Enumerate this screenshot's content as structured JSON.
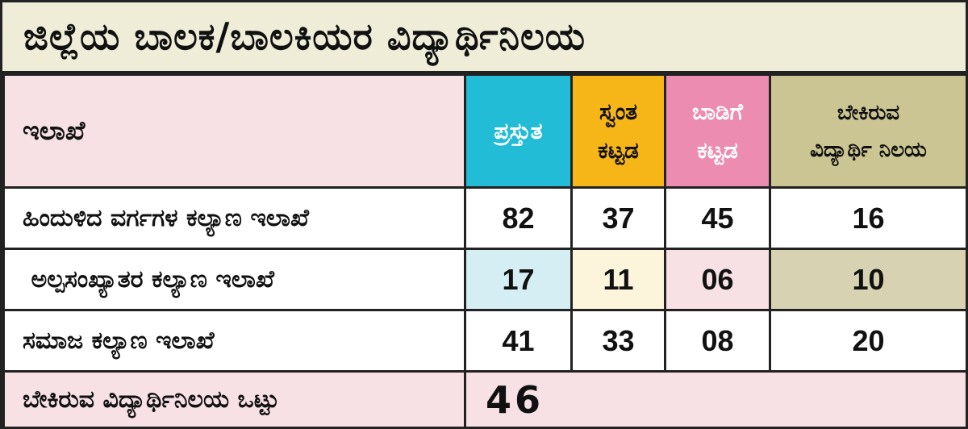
{
  "title": "ಜಿಲ್ಲೆಯ ಬಾಲಕ/ಬಾಲಕಿಯರ ವಿದ್ಯಾರ್ಥಿನಿಲಯ",
  "headers": {
    "department": "ಇಲಾಖೆ",
    "present": "ಪ್ರಸ್ತುತ",
    "own_building_1": "ಸ್ವಂತ",
    "own_building_2": "ಕಟ್ಟಡ",
    "rented_building_1": "ಬಾಡಿಗೆ",
    "rented_building_2": "ಕಟ್ಟಡ",
    "required_1": "ಬೇಕಿರುವ",
    "required_2": "ವಿದ್ಯಾರ್ಥಿ ನಿಲಯ"
  },
  "rows": [
    {
      "department": "ಹಿಂದುಳಿದ ವರ್ಗಗಳ ಕಲ್ಯಾಣ ಇಲಾಖೆ",
      "present": "82",
      "own": "37",
      "rented": "45",
      "required": "16"
    },
    {
      "department": " ಅಲ್ಪಸಂಖ್ಯಾತರ ಕಲ್ಯಾಣ ಇಲಾಖೆ",
      "present": "17",
      "own": "11",
      "rented": "06",
      "required": "10"
    },
    {
      "department": "ಸಮಾಜ ಕಲ್ಯಾಣ ಇಲಾಖೆ",
      "present": "41",
      "own": "33",
      "rented": "08",
      "required": "20"
    }
  ],
  "total": {
    "label": "ಬೇಕಿರುವ ವಿದ್ಯಾರ್ಥಿನಿಲಯ ಒಟ್ಟು",
    "value": "46"
  },
  "colors": {
    "title_bg": "#efedd8",
    "header_bg": "#f7e1e4",
    "present": "#22bcd6",
    "own": "#f7b617",
    "rented": "#ec8cb0",
    "required": "#cbc593"
  }
}
